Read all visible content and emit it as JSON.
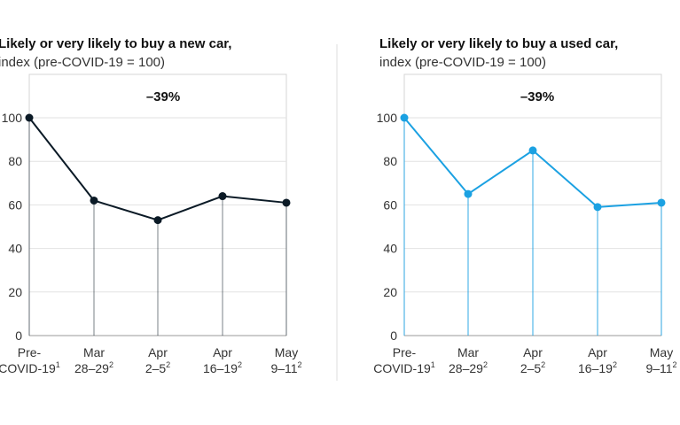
{
  "chart_data": [
    {
      "type": "line",
      "title": "Likely or very likely to buy a new car,",
      "subtitle": "index (pre-COVID-19 = 100)",
      "annotation": "–39%",
      "categories": [
        [
          "Pre-",
          "COVID-19",
          "1"
        ],
        [
          "Mar",
          "28–29",
          "2"
        ],
        [
          "Apr",
          "2–5",
          "2"
        ],
        [
          "Apr",
          "16–19",
          "2"
        ],
        [
          "May",
          "9–11",
          "2"
        ]
      ],
      "values": [
        100,
        62,
        53,
        64,
        61
      ],
      "ylim": [
        0,
        100
      ],
      "yticks": [
        "0",
        "20",
        "40",
        "60",
        "80",
        "100"
      ],
      "color": "#0b1a26",
      "grid": true
    },
    {
      "type": "line",
      "title": "Likely or very likely  to buy a used car,",
      "subtitle": "index (pre-COVID-19 = 100)",
      "annotation": "–39%",
      "categories": [
        [
          "Pre-",
          "COVID-19",
          "1"
        ],
        [
          "Mar",
          "28–29",
          "2"
        ],
        [
          "Apr",
          "2–5",
          "2"
        ],
        [
          "Apr",
          "16–19",
          "2"
        ],
        [
          "May",
          "9–11",
          "2"
        ]
      ],
      "values": [
        100,
        65,
        85,
        59,
        61
      ],
      "ylim": [
        0,
        100
      ],
      "yticks": [
        "0",
        "20",
        "40",
        "60",
        "80",
        "100"
      ],
      "color": "#1ba1e2",
      "grid": true
    }
  ]
}
